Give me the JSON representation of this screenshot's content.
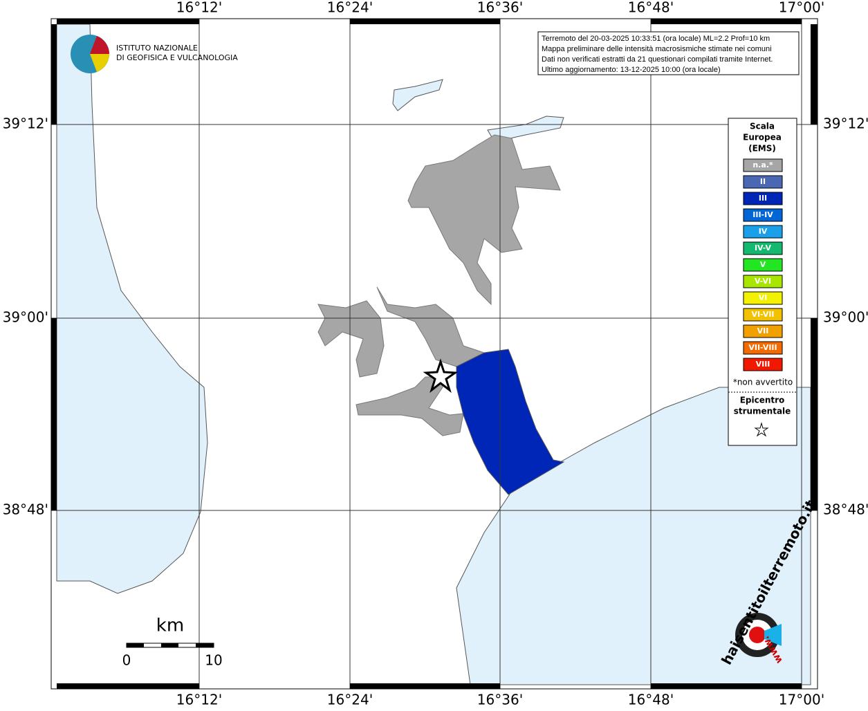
{
  "logo": {
    "line1": "ISTITUTO NAZIONALE",
    "line2": "DI GEOFISICA E VULCANOLOGIA"
  },
  "info": [
    "Terremoto del 20-03-2025 10:33:51 (ora locale) ML=2.2 Prof=10 km",
    "Mappa preliminare delle intensità macrosismiche stimate nei comuni",
    "Dati non verificati estratti da 21 questionari compilati tramite Internet.",
    "Ultimo aggiornamento: 13-12-2025 10:00 (ora locale)"
  ],
  "lon_labels": [
    "16°12'",
    "16°24'",
    "16°36'",
    "16°48'",
    "17°00'"
  ],
  "lat_labels": [
    "39°12'",
    "39°00'",
    "38°48'"
  ],
  "legend": {
    "title": [
      "Scala",
      "Europea",
      "(EMS)"
    ],
    "items": [
      {
        "label": "n.a.*",
        "color": "#a6a6a6"
      },
      {
        "label": "II",
        "color": "#4a67b3"
      },
      {
        "label": "III",
        "color": "#0026b8"
      },
      {
        "label": "III-IV",
        "color": "#0066d6"
      },
      {
        "label": "IV",
        "color": "#1aa0e8"
      },
      {
        "label": "IV-V",
        "color": "#14b86e"
      },
      {
        "label": "V",
        "color": "#22e622"
      },
      {
        "label": "V-VI",
        "color": "#a8e600"
      },
      {
        "label": "VI",
        "color": "#f2f200"
      },
      {
        "label": "VI-VII",
        "color": "#f2c200"
      },
      {
        "label": "VII",
        "color": "#f2a000"
      },
      {
        "label": "VII-VIII",
        "color": "#f26a00"
      },
      {
        "label": "VIII",
        "color": "#f21800"
      }
    ],
    "note": "*non avvertito",
    "epicenter": [
      "Epicentro",
      "strumentale"
    ]
  },
  "scale": {
    "unit": "km",
    "start": "0",
    "end": "10"
  },
  "badge": {
    "site": "haisentitoilterremoto.it",
    "www": "www."
  }
}
